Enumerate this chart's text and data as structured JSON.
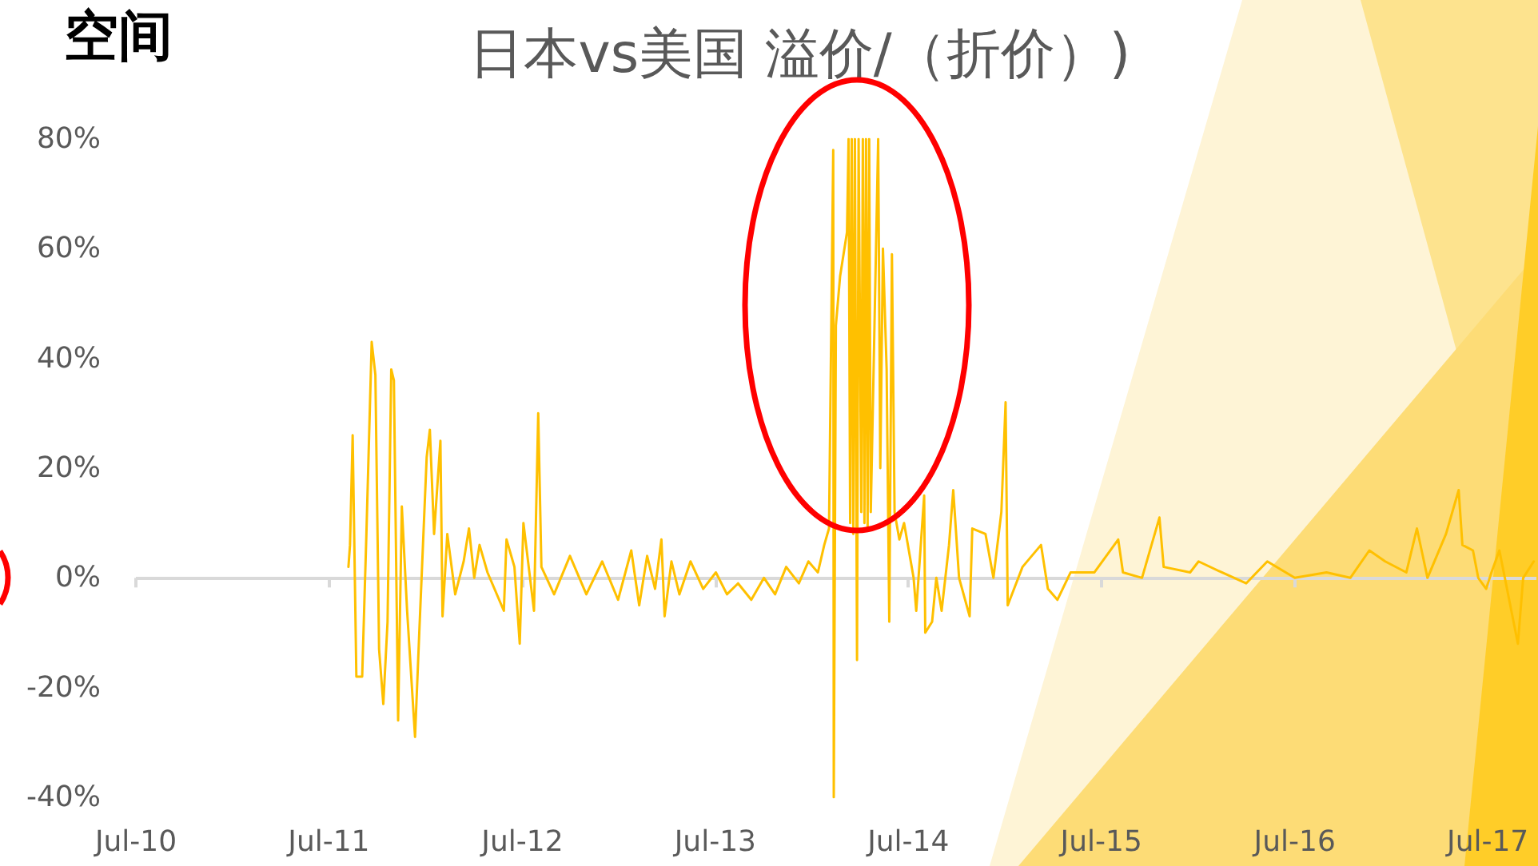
{
  "chart_data": {
    "type": "line",
    "title": "日本vs美国 溢价/（折价）)",
    "annotations": [
      "空间"
    ],
    "x": [
      "2011-08-07",
      "2011-08-10",
      "2011-08-15",
      "2011-08-22",
      "2011-09-02",
      "2011-09-10",
      "2011-09-20",
      "2011-09-27",
      "2011-10-04",
      "2011-10-12",
      "2011-10-20",
      "2011-10-27",
      "2011-11-01",
      "2011-11-09",
      "2011-11-16",
      "2011-11-26",
      "2011-12-11",
      "2011-12-19",
      "2012-01-02",
      "2012-01-08",
      "2012-01-16",
      "2012-01-28",
      "2012-02-01",
      "2012-02-10",
      "2012-02-25",
      "2012-03-12",
      "2012-03-22",
      "2012-04-01",
      "2012-04-11",
      "2012-04-26",
      "2012-05-27",
      "2012-06-01",
      "2012-06-16",
      "2012-06-26",
      "2012-07-03",
      "2012-07-23",
      "2012-07-31",
      "2012-08-06",
      "2012-08-30",
      "2012-09-29",
      "2012-10-30",
      "2012-11-29",
      "2012-12-29",
      "2013-01-23",
      "2013-02-07",
      "2013-02-22",
      "2013-03-09",
      "2013-03-21",
      "2013-03-27",
      "2013-04-09",
      "2013-04-24",
      "2013-05-15",
      "2013-06-08",
      "2013-07-02",
      "2013-07-23",
      "2013-08-13",
      "2013-09-07",
      "2013-10-01",
      "2013-10-22",
      "2013-11-12",
      "2013-12-06",
      "2013-12-24",
      "2014-01-11",
      "2014-01-23",
      "2014-02-01",
      "2014-02-09",
      "2014-02-10",
      "2014-02-14",
      "2014-02-22",
      "2014-03-07",
      "2014-03-10",
      "2014-03-13",
      "2014-03-16",
      "2014-03-19",
      "2014-03-22",
      "2014-03-26",
      "2014-03-29",
      "2014-04-03",
      "2014-04-06",
      "2014-04-09",
      "2014-04-12",
      "2014-04-15",
      "2014-04-18",
      "2014-04-21",
      "2014-05-05",
      "2014-05-09",
      "2014-05-14",
      "2014-05-21",
      "2014-05-26",
      "2014-05-31",
      "2014-06-05",
      "2014-06-14",
      "2014-06-23",
      "2014-07-11",
      "2014-07-16",
      "2014-07-31",
      "2014-08-02",
      "2014-08-15",
      "2014-08-23",
      "2014-09-02",
      "2014-09-16",
      "2014-09-24",
      "2014-10-05",
      "2014-10-25",
      "2014-10-30",
      "2014-11-24",
      "2014-12-09",
      "2014-12-24",
      "2015-01-01",
      "2015-01-05",
      "2015-02-02",
      "2015-03-09",
      "2015-03-22",
      "2015-04-09",
      "2015-05-04",
      "2015-06-18",
      "2015-08-02",
      "2015-08-11",
      "2015-09-16",
      "2015-10-19",
      "2015-10-27",
      "2015-12-16",
      "2016-01-01",
      "2016-02-14",
      "2016-03-31",
      "2016-05-10",
      "2016-07-01",
      "2016-08-30",
      "2016-10-14",
      "2016-11-19",
      "2016-12-19",
      "2017-01-28",
      "2017-02-17",
      "2017-03-09",
      "2017-04-13",
      "2017-05-07",
      "2017-05-14",
      "2017-06-03",
      "2017-06-13",
      "2017-06-28",
      "2017-07-08",
      "2017-07-23",
      "2017-08-27",
      "2017-09-06",
      "2017-09-26"
    ],
    "values": [
      2,
      6,
      26,
      -18,
      -18,
      8,
      43,
      37,
      -13,
      -23,
      -8,
      38,
      36,
      -26,
      13,
      -6,
      -29,
      -10,
      22,
      27,
      8,
      25,
      -7,
      8,
      -3,
      3,
      9,
      0,
      6,
      1,
      -6,
      7,
      2,
      -12,
      10,
      -6,
      30,
      2,
      -3,
      4,
      -3,
      3,
      -4,
      5,
      -5,
      4,
      -2,
      7,
      -7,
      3,
      -3,
      3,
      -2,
      1,
      -3,
      -1,
      -4,
      0,
      -3,
      2,
      -1,
      3,
      1,
      6,
      9,
      78,
      -40,
      46,
      55,
      63,
      80,
      10,
      80,
      8,
      80,
      -15,
      80,
      12,
      80,
      10,
      80,
      9,
      80,
      12,
      80,
      20,
      60,
      38,
      -8,
      59,
      12,
      7,
      10,
      0,
      -6,
      15,
      -10,
      -8,
      0,
      -6,
      6,
      16,
      0,
      -7,
      9,
      8,
      0,
      12,
      32,
      -5,
      2,
      6,
      -2,
      -4,
      1,
      1,
      7,
      1,
      0,
      11,
      2,
      1,
      3,
      1,
      -1,
      3,
      0,
      1,
      0,
      5,
      3,
      1,
      9,
      0,
      8,
      16,
      6,
      5,
      0,
      -2,
      1,
      5,
      -12,
      0,
      3
    ],
    "color": "#ffc000",
    "line_style": "solid",
    "marker": "none",
    "grid": false,
    "ref_lines": [
      {
        "axis": "y",
        "value": 0,
        "color": "#d9d9d9"
      }
    ],
    "xlim": [
      "2010-07",
      "2017-10"
    ],
    "xticks": [
      {
        "value": "2010-07",
        "label": "Jul-10"
      },
      {
        "value": "2011-07",
        "label": "Jul-11"
      },
      {
        "value": "2012-07",
        "label": "Jul-12"
      },
      {
        "value": "2013-07",
        "label": "Jul-13"
      },
      {
        "value": "2014-07",
        "label": "Jul-14"
      },
      {
        "value": "2015-07",
        "label": "Jul-15"
      },
      {
        "value": "2016-07",
        "label": "Jul-16"
      },
      {
        "value": "2017-07",
        "label": "Jul-17"
      }
    ],
    "ylim": [
      -40,
      80
    ],
    "yticks": [
      {
        "value": -40,
        "label": "-40%"
      },
      {
        "value": -20,
        "label": "-20%"
      },
      {
        "value": 0,
        "label": "0%"
      },
      {
        "value": 20,
        "label": "20%"
      },
      {
        "value": 40,
        "label": "40%"
      },
      {
        "value": 60,
        "label": "60%"
      },
      {
        "value": 80,
        "label": "80%"
      }
    ]
  }
}
